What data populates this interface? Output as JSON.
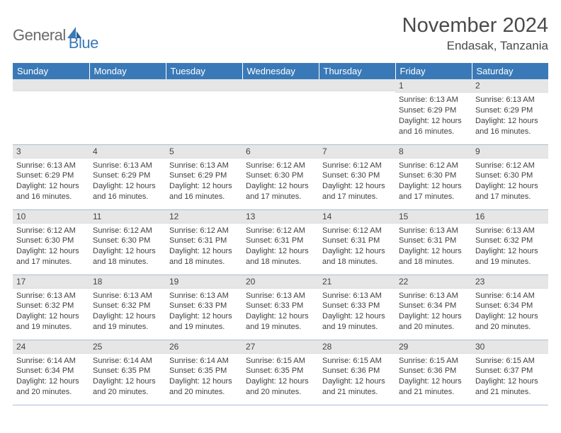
{
  "logo": {
    "gray": "General",
    "blue": "Blue"
  },
  "title": "November 2024",
  "location": "Endasak, Tanzania",
  "colors": {
    "header_bg": "#3a79b7",
    "daynum_bg": "#e6e6e6",
    "row_border": "#a9bdd4"
  },
  "headers": [
    "Sunday",
    "Monday",
    "Tuesday",
    "Wednesday",
    "Thursday",
    "Friday",
    "Saturday"
  ],
  "weeks": [
    [
      {
        "num": "",
        "lines": []
      },
      {
        "num": "",
        "lines": []
      },
      {
        "num": "",
        "lines": []
      },
      {
        "num": "",
        "lines": []
      },
      {
        "num": "",
        "lines": []
      },
      {
        "num": "1",
        "lines": [
          "Sunrise: 6:13 AM",
          "Sunset: 6:29 PM",
          "Daylight: 12 hours and 16 minutes."
        ]
      },
      {
        "num": "2",
        "lines": [
          "Sunrise: 6:13 AM",
          "Sunset: 6:29 PM",
          "Daylight: 12 hours and 16 minutes."
        ]
      }
    ],
    [
      {
        "num": "3",
        "lines": [
          "Sunrise: 6:13 AM",
          "Sunset: 6:29 PM",
          "Daylight: 12 hours and 16 minutes."
        ]
      },
      {
        "num": "4",
        "lines": [
          "Sunrise: 6:13 AM",
          "Sunset: 6:29 PM",
          "Daylight: 12 hours and 16 minutes."
        ]
      },
      {
        "num": "5",
        "lines": [
          "Sunrise: 6:13 AM",
          "Sunset: 6:29 PM",
          "Daylight: 12 hours and 16 minutes."
        ]
      },
      {
        "num": "6",
        "lines": [
          "Sunrise: 6:12 AM",
          "Sunset: 6:30 PM",
          "Daylight: 12 hours and 17 minutes."
        ]
      },
      {
        "num": "7",
        "lines": [
          "Sunrise: 6:12 AM",
          "Sunset: 6:30 PM",
          "Daylight: 12 hours and 17 minutes."
        ]
      },
      {
        "num": "8",
        "lines": [
          "Sunrise: 6:12 AM",
          "Sunset: 6:30 PM",
          "Daylight: 12 hours and 17 minutes."
        ]
      },
      {
        "num": "9",
        "lines": [
          "Sunrise: 6:12 AM",
          "Sunset: 6:30 PM",
          "Daylight: 12 hours and 17 minutes."
        ]
      }
    ],
    [
      {
        "num": "10",
        "lines": [
          "Sunrise: 6:12 AM",
          "Sunset: 6:30 PM",
          "Daylight: 12 hours and 17 minutes."
        ]
      },
      {
        "num": "11",
        "lines": [
          "Sunrise: 6:12 AM",
          "Sunset: 6:30 PM",
          "Daylight: 12 hours and 18 minutes."
        ]
      },
      {
        "num": "12",
        "lines": [
          "Sunrise: 6:12 AM",
          "Sunset: 6:31 PM",
          "Daylight: 12 hours and 18 minutes."
        ]
      },
      {
        "num": "13",
        "lines": [
          "Sunrise: 6:12 AM",
          "Sunset: 6:31 PM",
          "Daylight: 12 hours and 18 minutes."
        ]
      },
      {
        "num": "14",
        "lines": [
          "Sunrise: 6:12 AM",
          "Sunset: 6:31 PM",
          "Daylight: 12 hours and 18 minutes."
        ]
      },
      {
        "num": "15",
        "lines": [
          "Sunrise: 6:13 AM",
          "Sunset: 6:31 PM",
          "Daylight: 12 hours and 18 minutes."
        ]
      },
      {
        "num": "16",
        "lines": [
          "Sunrise: 6:13 AM",
          "Sunset: 6:32 PM",
          "Daylight: 12 hours and 19 minutes."
        ]
      }
    ],
    [
      {
        "num": "17",
        "lines": [
          "Sunrise: 6:13 AM",
          "Sunset: 6:32 PM",
          "Daylight: 12 hours and 19 minutes."
        ]
      },
      {
        "num": "18",
        "lines": [
          "Sunrise: 6:13 AM",
          "Sunset: 6:32 PM",
          "Daylight: 12 hours and 19 minutes."
        ]
      },
      {
        "num": "19",
        "lines": [
          "Sunrise: 6:13 AM",
          "Sunset: 6:33 PM",
          "Daylight: 12 hours and 19 minutes."
        ]
      },
      {
        "num": "20",
        "lines": [
          "Sunrise: 6:13 AM",
          "Sunset: 6:33 PM",
          "Daylight: 12 hours and 19 minutes."
        ]
      },
      {
        "num": "21",
        "lines": [
          "Sunrise: 6:13 AM",
          "Sunset: 6:33 PM",
          "Daylight: 12 hours and 19 minutes."
        ]
      },
      {
        "num": "22",
        "lines": [
          "Sunrise: 6:13 AM",
          "Sunset: 6:34 PM",
          "Daylight: 12 hours and 20 minutes."
        ]
      },
      {
        "num": "23",
        "lines": [
          "Sunrise: 6:14 AM",
          "Sunset: 6:34 PM",
          "Daylight: 12 hours and 20 minutes."
        ]
      }
    ],
    [
      {
        "num": "24",
        "lines": [
          "Sunrise: 6:14 AM",
          "Sunset: 6:34 PM",
          "Daylight: 12 hours and 20 minutes."
        ]
      },
      {
        "num": "25",
        "lines": [
          "Sunrise: 6:14 AM",
          "Sunset: 6:35 PM",
          "Daylight: 12 hours and 20 minutes."
        ]
      },
      {
        "num": "26",
        "lines": [
          "Sunrise: 6:14 AM",
          "Sunset: 6:35 PM",
          "Daylight: 12 hours and 20 minutes."
        ]
      },
      {
        "num": "27",
        "lines": [
          "Sunrise: 6:15 AM",
          "Sunset: 6:35 PM",
          "Daylight: 12 hours and 20 minutes."
        ]
      },
      {
        "num": "28",
        "lines": [
          "Sunrise: 6:15 AM",
          "Sunset: 6:36 PM",
          "Daylight: 12 hours and 21 minutes."
        ]
      },
      {
        "num": "29",
        "lines": [
          "Sunrise: 6:15 AM",
          "Sunset: 6:36 PM",
          "Daylight: 12 hours and 21 minutes."
        ]
      },
      {
        "num": "30",
        "lines": [
          "Sunrise: 6:15 AM",
          "Sunset: 6:37 PM",
          "Daylight: 12 hours and 21 minutes."
        ]
      }
    ]
  ]
}
